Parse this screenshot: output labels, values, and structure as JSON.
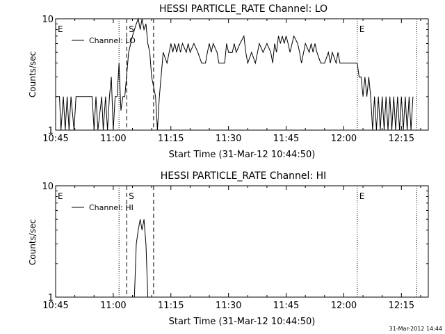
{
  "footer_stamp": "31-Mar-2012 14:44",
  "chart_data": [
    {
      "type": "line",
      "title": "HESSI PARTICLE_RATE Channel: LO",
      "xlabel": "Start Time (31-Mar-12 10:44:50)",
      "ylabel": "Counts/sec",
      "y_scale": "log",
      "ylim": [
        1,
        10
      ],
      "y_ticks": [
        "1",
        "10"
      ],
      "xlim_minutes": [
        0,
        97
      ],
      "x_ticks": [
        {
          "label": "10:45",
          "m": 0
        },
        {
          "label": "11:00",
          "m": 15
        },
        {
          "label": "11:15",
          "m": 30
        },
        {
          "label": "11:30",
          "m": 45
        },
        {
          "label": "11:45",
          "m": 60
        },
        {
          "label": "12:00",
          "m": 75
        },
        {
          "label": "12:15",
          "m": 90
        }
      ],
      "markers": [
        {
          "label": "E",
          "m": 0,
          "style": "dotted"
        },
        {
          "label": "",
          "m": 16.5,
          "style": "dotted"
        },
        {
          "label": "S",
          "m": 18.5,
          "style": "dashed"
        },
        {
          "label": "",
          "m": 25.5,
          "style": "dashed"
        },
        {
          "label": "E",
          "m": 78.5,
          "style": "dotted"
        },
        {
          "label": "",
          "m": 94,
          "style": "dotted"
        }
      ],
      "legend": {
        "label": "Channel: LO",
        "position": "top-left"
      },
      "series": [
        {
          "name": "Channel: LO",
          "points": [
            [
              0,
              2
            ],
            [
              1,
              2
            ],
            [
              1.4,
              1
            ],
            [
              2,
              2
            ],
            [
              2.5,
              1
            ],
            [
              3,
              2
            ],
            [
              3.5,
              1
            ],
            [
              4,
              2
            ],
            [
              4.8,
              1
            ],
            [
              5.3,
              2
            ],
            [
              9.5,
              2
            ],
            [
              10,
              1
            ],
            [
              10.5,
              2
            ],
            [
              11,
              1
            ],
            [
              12,
              2
            ],
            [
              12.4,
              1
            ],
            [
              13,
              2
            ],
            [
              13.5,
              1
            ],
            [
              14,
              2
            ],
            [
              14.5,
              3
            ],
            [
              15,
              1
            ],
            [
              15.5,
              2
            ],
            [
              16,
              2
            ],
            [
              16.5,
              4
            ],
            [
              17,
              1.5
            ],
            [
              17.5,
              2
            ],
            [
              18,
              2
            ],
            [
              19,
              5
            ],
            [
              20,
              7
            ],
            [
              21,
              9
            ],
            [
              21.5,
              10
            ],
            [
              22,
              8
            ],
            [
              22.5,
              10
            ],
            [
              23,
              8
            ],
            [
              23.5,
              9
            ],
            [
              24,
              6
            ],
            [
              24.5,
              5
            ],
            [
              25,
              3
            ],
            [
              26,
              2
            ],
            [
              26.5,
              1
            ],
            [
              27,
              2
            ],
            [
              28,
              5
            ],
            [
              29,
              4
            ],
            [
              30,
              6
            ],
            [
              30.5,
              5
            ],
            [
              31,
              6
            ],
            [
              31.5,
              5
            ],
            [
              32,
              6
            ],
            [
              32.5,
              5
            ],
            [
              33,
              6
            ],
            [
              34,
              5
            ],
            [
              34.5,
              6
            ],
            [
              35,
              5
            ],
            [
              36,
              6
            ],
            [
              37,
              5
            ],
            [
              38,
              4
            ],
            [
              39,
              4
            ],
            [
              39.5,
              5
            ],
            [
              40,
              6
            ],
            [
              40.5,
              5
            ],
            [
              41,
              6
            ],
            [
              42,
              5
            ],
            [
              42.5,
              4
            ],
            [
              43,
              4
            ],
            [
              44,
              4
            ],
            [
              44.5,
              6
            ],
            [
              45,
              5
            ],
            [
              46,
              5
            ],
            [
              46.5,
              6
            ],
            [
              47,
              5
            ],
            [
              48,
              6
            ],
            [
              49,
              7
            ],
            [
              49.5,
              5
            ],
            [
              50,
              4
            ],
            [
              51,
              5
            ],
            [
              52,
              4
            ],
            [
              53,
              6
            ],
            [
              54,
              5
            ],
            [
              55,
              6
            ],
            [
              56,
              5
            ],
            [
              56.5,
              4
            ],
            [
              57,
              6
            ],
            [
              57.5,
              5
            ],
            [
              58,
              7
            ],
            [
              58.5,
              6
            ],
            [
              59,
              7
            ],
            [
              59.5,
              6
            ],
            [
              60,
              7
            ],
            [
              60.5,
              6
            ],
            [
              61,
              5
            ],
            [
              62,
              7
            ],
            [
              63,
              6
            ],
            [
              63.5,
              5
            ],
            [
              64,
              4
            ],
            [
              65,
              6
            ],
            [
              66,
              5
            ],
            [
              66.5,
              6
            ],
            [
              67,
              5
            ],
            [
              67.5,
              6
            ],
            [
              68,
              5
            ],
            [
              69,
              4
            ],
            [
              70,
              4
            ],
            [
              71,
              5
            ],
            [
              71.5,
              4
            ],
            [
              72,
              5
            ],
            [
              73,
              4
            ],
            [
              73.5,
              5
            ],
            [
              74,
              4
            ],
            [
              75,
              4
            ],
            [
              76,
              4
            ],
            [
              77,
              4
            ],
            [
              78.5,
              4
            ],
            [
              79,
              3
            ],
            [
              79.5,
              3
            ],
            [
              80,
              2
            ],
            [
              80.5,
              3
            ],
            [
              81,
              2
            ],
            [
              81.5,
              3
            ],
            [
              82,
              2
            ],
            [
              82.5,
              1
            ],
            [
              83,
              2
            ],
            [
              83.5,
              1
            ],
            [
              84,
              2
            ],
            [
              84.5,
              1
            ],
            [
              85,
              2
            ],
            [
              85.5,
              1
            ],
            [
              86,
              2
            ],
            [
              86.5,
              1
            ],
            [
              87,
              2
            ],
            [
              87.5,
              1
            ],
            [
              88,
              2
            ],
            [
              88.5,
              1
            ],
            [
              89,
              2
            ],
            [
              89.5,
              1
            ],
            [
              90,
              2
            ],
            [
              90.5,
              1
            ],
            [
              91,
              2
            ],
            [
              91.5,
              1
            ],
            [
              92,
              2
            ],
            [
              92.5,
              1
            ],
            [
              93,
              2
            ]
          ]
        }
      ]
    },
    {
      "type": "line",
      "title": "HESSI PARTICLE_RATE Channel: HI",
      "xlabel": "Start Time (31-Mar-12 10:44:50)",
      "ylabel": "Counts/sec",
      "y_scale": "log",
      "ylim": [
        1,
        10
      ],
      "y_ticks": [
        "1",
        "10"
      ],
      "xlim_minutes": [
        0,
        97
      ],
      "x_ticks": [
        {
          "label": "10:45",
          "m": 0
        },
        {
          "label": "11:00",
          "m": 15
        },
        {
          "label": "11:15",
          "m": 30
        },
        {
          "label": "11:30",
          "m": 45
        },
        {
          "label": "11:45",
          "m": 60
        },
        {
          "label": "12:00",
          "m": 75
        },
        {
          "label": "12:15",
          "m": 90
        }
      ],
      "markers": [
        {
          "label": "E",
          "m": 0,
          "style": "dotted"
        },
        {
          "label": "",
          "m": 16.5,
          "style": "dotted"
        },
        {
          "label": "S",
          "m": 18.5,
          "style": "dashed"
        },
        {
          "label": "",
          "m": 25.5,
          "style": "dashed"
        },
        {
          "label": "E",
          "m": 78.5,
          "style": "dotted"
        },
        {
          "label": "",
          "m": 94,
          "style": "dotted"
        }
      ],
      "legend": {
        "label": "Channel: HI",
        "position": "top-left"
      },
      "series": [
        {
          "name": "Channel: HI",
          "points": [
            [
              20.5,
              1
            ],
            [
              21,
              3
            ],
            [
              21.5,
              4
            ],
            [
              22,
              5
            ],
            [
              22.5,
              4
            ],
            [
              23,
              5
            ],
            [
              23.5,
              3
            ],
            [
              24,
              1
            ]
          ]
        }
      ]
    }
  ]
}
